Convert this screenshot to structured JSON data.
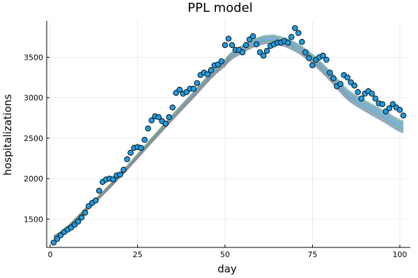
{
  "chart_data": {
    "type": "scatter",
    "title": "PPL model",
    "xlabel": "day",
    "ylabel": "hospitalizations",
    "xlim": [
      -1,
      103
    ],
    "ylim": [
      1150,
      3950
    ],
    "xticks": [
      0,
      25,
      50,
      75,
      100
    ],
    "yticks": [
      1500,
      2000,
      2500,
      3000,
      3500
    ],
    "grid": true,
    "legend": "none",
    "colors": {
      "points": "#1f9be0",
      "point_outline": "#000000",
      "band_fill": "#2e9bd8",
      "curves": [
        "#e0564f",
        "#3ea14a",
        "#8e6cd1",
        "#2aa7b6",
        "#c0892a"
      ]
    },
    "series": [
      {
        "type": "scatter",
        "x": [
          1,
          2,
          3,
          4,
          5,
          6,
          7,
          8,
          9,
          10,
          11,
          12,
          13,
          14,
          15,
          16,
          17,
          18,
          19,
          20,
          21,
          22,
          23,
          24,
          25,
          26,
          27,
          28,
          29,
          30,
          31,
          32,
          33,
          34,
          35,
          36,
          37,
          38,
          39,
          40,
          41,
          42,
          43,
          44,
          45,
          46,
          47,
          48,
          49,
          50,
          51,
          52,
          53,
          54,
          55,
          56,
          57,
          58,
          59,
          60,
          61,
          62,
          63,
          64,
          65,
          66,
          67,
          68,
          69,
          70,
          71,
          72,
          73,
          74,
          75,
          76,
          77,
          78,
          79,
          80,
          81,
          82,
          83,
          84,
          85,
          86,
          87,
          88,
          89,
          90,
          91,
          92,
          93,
          94,
          95,
          96,
          97,
          98,
          99,
          100,
          101
        ],
        "y": [
          1210,
          1255,
          1300,
          1340,
          1370,
          1395,
          1430,
          1470,
          1520,
          1580,
          1660,
          1700,
          1730,
          1850,
          1960,
          1990,
          2000,
          1990,
          2040,
          2050,
          2110,
          2240,
          2320,
          2380,
          2390,
          2380,
          2480,
          2620,
          2720,
          2770,
          2760,
          2710,
          2680,
          2760,
          2880,
          3060,
          3100,
          3050,
          3070,
          3110,
          3110,
          3180,
          3280,
          3310,
          3290,
          3340,
          3400,
          3410,
          3450,
          3650,
          3730,
          3650,
          3590,
          3590,
          3560,
          3650,
          3720,
          3760,
          3660,
          3560,
          3520,
          3580,
          3640,
          3660,
          3680,
          3680,
          3700,
          3680,
          3750,
          3860,
          3800,
          3690,
          3560,
          3490,
          3400,
          3470,
          3500,
          3520,
          3470,
          3310,
          3240,
          3140,
          3170,
          3280,
          3250,
          3190,
          3150,
          3070,
          2990,
          3050,
          3080,
          3050,
          2990,
          2930,
          2920,
          2830,
          2870,
          2920,
          2880,
          2850,
          2780
        ]
      },
      {
        "type": "line",
        "name": "",
        "x": [
          1,
          10,
          20,
          30,
          40,
          50,
          55,
          60,
          63,
          65,
          70,
          75,
          80,
          85,
          90,
          95,
          101
        ],
        "y": [
          1280,
          1610,
          2040,
          2520,
          2990,
          3430,
          3600,
          3700,
          3720,
          3710,
          3630,
          3480,
          3270,
          3040,
          2900,
          2780,
          2640
        ]
      }
    ]
  }
}
